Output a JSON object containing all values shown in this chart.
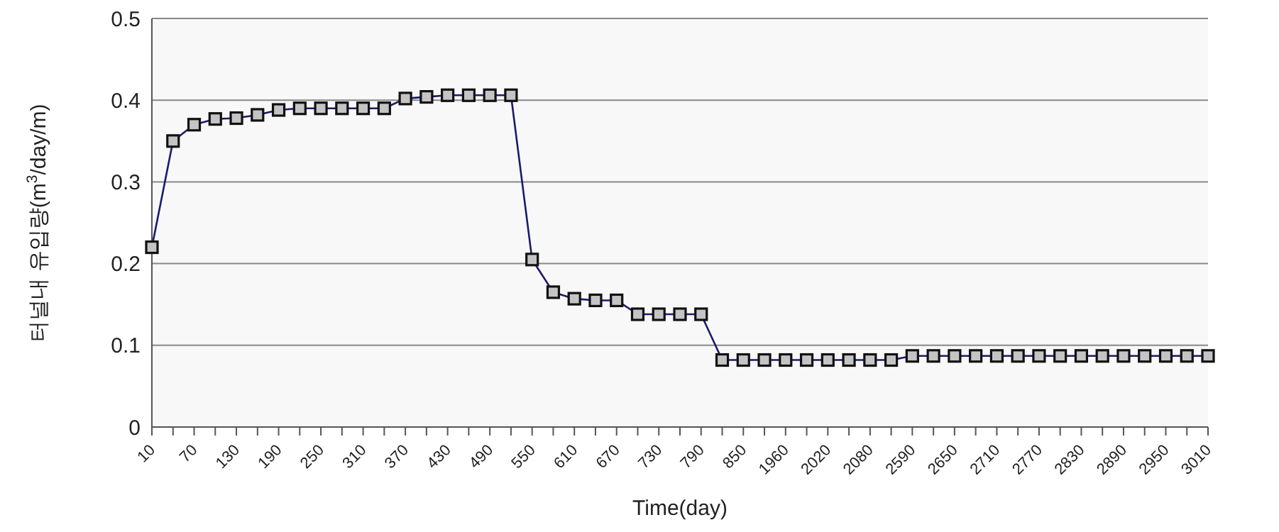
{
  "chart_data": {
    "type": "line",
    "xlabel": "Time(day)",
    "ylabel": "터널내 유입량(m$^{3}$/day/m)",
    "categories": [
      "10",
      null,
      "70",
      null,
      "130",
      null,
      "190",
      null,
      "250",
      null,
      "310",
      null,
      "370",
      null,
      "430",
      null,
      "490",
      null,
      "550",
      null,
      "610",
      null,
      "670",
      null,
      "730",
      null,
      "790",
      null,
      "850",
      null,
      "1960",
      null,
      "2020",
      null,
      "2080",
      null,
      "2590",
      null,
      "2650",
      null,
      "2710",
      null,
      "2770",
      null,
      "2830",
      null,
      "2890",
      null,
      "2950",
      null,
      "3010"
    ],
    "series": [
      {
        "color": "#1a1a6e",
        "values": [
          0.22,
          0.35,
          0.37,
          0.377,
          0.378,
          0.382,
          0.388,
          0.39,
          0.39,
          0.39,
          0.39,
          0.39,
          0.402,
          0.404,
          0.406,
          0.406,
          0.406,
          0.406,
          0.205,
          0.165,
          0.157,
          0.155,
          0.155,
          0.138,
          0.138,
          0.138,
          0.138,
          0.082,
          0.082,
          0.082,
          0.082,
          0.082,
          0.082,
          0.082,
          0.082,
          0.082,
          0.087,
          0.087,
          0.087,
          0.087,
          0.087,
          0.087,
          0.087,
          0.087,
          0.087,
          0.087,
          0.087,
          0.087,
          0.087,
          0.087,
          0.087
        ]
      }
    ],
    "ylim": [
      0,
      0.5
    ],
    "yticks": [
      0,
      0.1,
      0.2,
      0.3,
      0.4,
      0.5
    ],
    "grid": "y",
    "legend": false,
    "marker": "square",
    "line_style": "solid"
  }
}
